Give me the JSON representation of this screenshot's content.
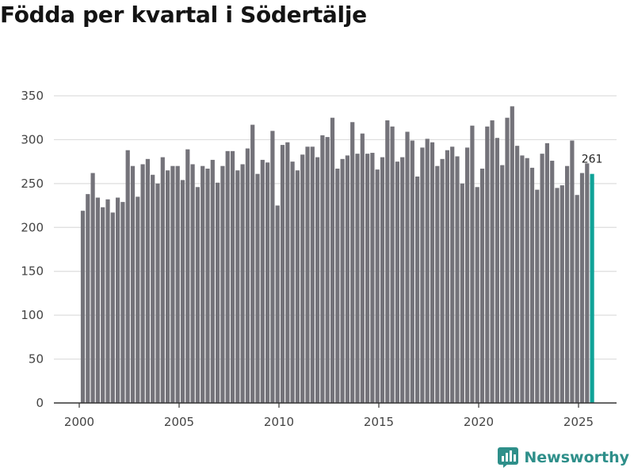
{
  "chart_data": {
    "type": "bar",
    "title": "Födda per kvartal i Södertälje",
    "xlabel": "",
    "ylabel": "",
    "ylim": [
      0,
      350
    ],
    "yticks": [
      0,
      50,
      100,
      150,
      200,
      250,
      300,
      350
    ],
    "xticks": [
      "2000",
      "2005",
      "2010",
      "2015",
      "2020",
      "2025"
    ],
    "grid": true,
    "colors": {
      "bar": "#74737a",
      "highlight": "#10a398",
      "grid": "#dddddd",
      "axis": "#333333"
    },
    "first_quarter": "2000Q1",
    "highlight_label": "261",
    "values": [
      219,
      238,
      262,
      234,
      223,
      232,
      217,
      234,
      229,
      288,
      270,
      235,
      272,
      278,
      260,
      250,
      280,
      265,
      270,
      270,
      254,
      289,
      272,
      246,
      270,
      267,
      277,
      251,
      270,
      287,
      287,
      265,
      272,
      290,
      317,
      261,
      277,
      274,
      310,
      225,
      294,
      297,
      275,
      265,
      283,
      292,
      292,
      280,
      305,
      303,
      325,
      267,
      278,
      282,
      320,
      284,
      307,
      284,
      285,
      266,
      280,
      322,
      315,
      275,
      280,
      309,
      299,
      258,
      291,
      301,
      297,
      270,
      278,
      288,
      292,
      281,
      250,
      291,
      316,
      246,
      267,
      315,
      322,
      302,
      271,
      325,
      338,
      293,
      282,
      279,
      268,
      243,
      284,
      296,
      276,
      245,
      248,
      270,
      299,
      237,
      262,
      273,
      261
    ]
  },
  "brand": {
    "name": "Newsworthy"
  }
}
